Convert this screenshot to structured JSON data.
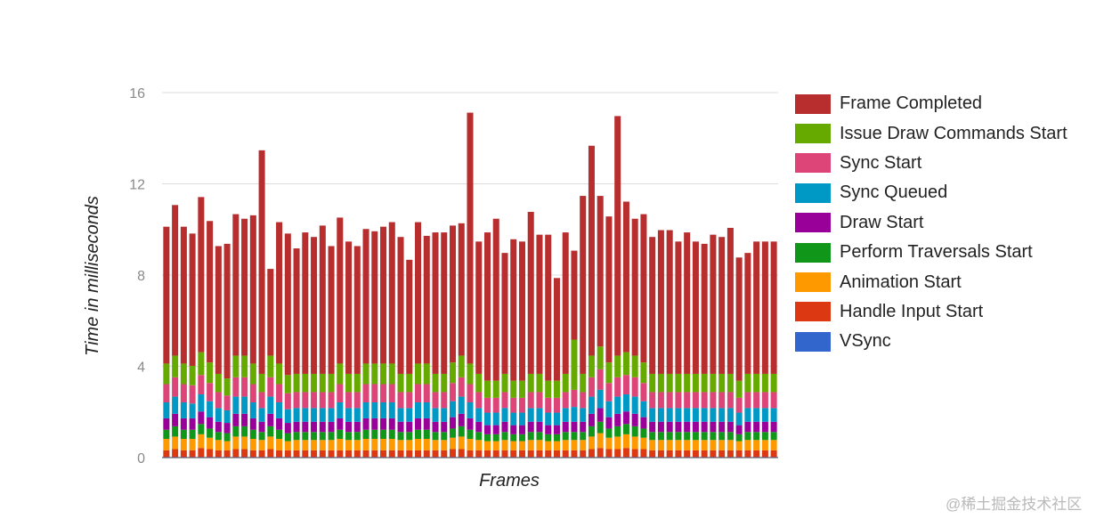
{
  "chart_data": {
    "type": "bar",
    "stacked": true,
    "xlabel": "Frames",
    "ylabel": "Time in milliseconds",
    "ylim": [
      0,
      16
    ],
    "yticks": [
      0,
      4,
      8,
      12,
      16
    ],
    "grid": true,
    "legend_position": "right",
    "frame_count": 71,
    "series": [
      {
        "name": "VSync",
        "color": "#3366cc",
        "values": [
          0.02,
          0.02,
          0.02,
          0.02,
          0.02,
          0.02,
          0.02,
          0.02,
          0.02,
          0.02,
          0.02,
          0.02,
          0.02,
          0.02,
          0.02,
          0.02,
          0.02,
          0.02,
          0.02,
          0.02,
          0.02,
          0.02,
          0.02,
          0.02,
          0.02,
          0.02,
          0.02,
          0.02,
          0.02,
          0.02,
          0.02,
          0.02,
          0.02,
          0.02,
          0.02,
          0.02,
          0.02,
          0.02,
          0.02,
          0.02,
          0.02,
          0.02,
          0.02,
          0.02,
          0.02,
          0.02,
          0.02,
          0.02,
          0.02,
          0.02,
          0.02,
          0.02,
          0.02,
          0.02,
          0.02,
          0.02,
          0.02,
          0.02,
          0.02,
          0.02,
          0.02,
          0.02,
          0.02,
          0.02,
          0.02,
          0.02,
          0.02,
          0.02,
          0.02,
          0.02,
          0.02
        ]
      },
      {
        "name": "Handle Input Start",
        "color": "#dc3912",
        "values": [
          0.3,
          0.35,
          0.3,
          0.3,
          0.4,
          0.35,
          0.3,
          0.3,
          0.35,
          0.35,
          0.3,
          0.3,
          0.35,
          0.3,
          0.3,
          0.3,
          0.3,
          0.3,
          0.3,
          0.3,
          0.3,
          0.3,
          0.3,
          0.3,
          0.3,
          0.3,
          0.3,
          0.3,
          0.3,
          0.3,
          0.3,
          0.3,
          0.3,
          0.35,
          0.35,
          0.3,
          0.3,
          0.3,
          0.3,
          0.3,
          0.3,
          0.3,
          0.3,
          0.3,
          0.3,
          0.3,
          0.3,
          0.3,
          0.3,
          0.35,
          0.4,
          0.35,
          0.35,
          0.4,
          0.35,
          0.35,
          0.3,
          0.3,
          0.3,
          0.3,
          0.3,
          0.3,
          0.3,
          0.3,
          0.3,
          0.3,
          0.3,
          0.3,
          0.3,
          0.3,
          0.3
        ]
      },
      {
        "name": "Animation Start",
        "color": "#ff9900",
        "values": [
          0.5,
          0.55,
          0.5,
          0.5,
          0.6,
          0.5,
          0.45,
          0.4,
          0.55,
          0.55,
          0.5,
          0.45,
          0.55,
          0.5,
          0.4,
          0.45,
          0.45,
          0.45,
          0.45,
          0.45,
          0.5,
          0.45,
          0.45,
          0.5,
          0.5,
          0.5,
          0.5,
          0.45,
          0.45,
          0.5,
          0.5,
          0.45,
          0.45,
          0.5,
          0.55,
          0.5,
          0.45,
          0.4,
          0.4,
          0.45,
          0.4,
          0.4,
          0.45,
          0.45,
          0.4,
          0.4,
          0.45,
          0.45,
          0.45,
          0.55,
          0.65,
          0.5,
          0.55,
          0.6,
          0.55,
          0.5,
          0.45,
          0.45,
          0.45,
          0.45,
          0.45,
          0.45,
          0.45,
          0.45,
          0.45,
          0.45,
          0.4,
          0.45,
          0.45,
          0.45,
          0.45
        ]
      },
      {
        "name": "Perform Traversals Start",
        "color": "#109618",
        "values": [
          0.4,
          0.45,
          0.4,
          0.4,
          0.45,
          0.4,
          0.35,
          0.35,
          0.45,
          0.45,
          0.4,
          0.35,
          0.45,
          0.4,
          0.35,
          0.35,
          0.35,
          0.35,
          0.35,
          0.35,
          0.4,
          0.35,
          0.35,
          0.4,
          0.4,
          0.4,
          0.4,
          0.35,
          0.35,
          0.4,
          0.4,
          0.35,
          0.35,
          0.4,
          0.45,
          0.4,
          0.35,
          0.3,
          0.3,
          0.35,
          0.3,
          0.3,
          0.35,
          0.35,
          0.3,
          0.3,
          0.35,
          0.35,
          0.35,
          0.45,
          0.5,
          0.4,
          0.45,
          0.45,
          0.45,
          0.4,
          0.35,
          0.35,
          0.35,
          0.35,
          0.35,
          0.35,
          0.35,
          0.35,
          0.35,
          0.35,
          0.3,
          0.35,
          0.35,
          0.35,
          0.35
        ]
      },
      {
        "name": "Draw Start",
        "color": "#990099",
        "values": [
          0.5,
          0.55,
          0.5,
          0.5,
          0.55,
          0.5,
          0.45,
          0.45,
          0.55,
          0.55,
          0.5,
          0.45,
          0.55,
          0.5,
          0.45,
          0.45,
          0.45,
          0.45,
          0.45,
          0.45,
          0.5,
          0.45,
          0.45,
          0.5,
          0.5,
          0.5,
          0.5,
          0.45,
          0.45,
          0.5,
          0.5,
          0.45,
          0.45,
          0.5,
          0.55,
          0.5,
          0.45,
          0.4,
          0.4,
          0.45,
          0.4,
          0.4,
          0.45,
          0.45,
          0.4,
          0.4,
          0.45,
          0.45,
          0.45,
          0.55,
          0.6,
          0.5,
          0.55,
          0.55,
          0.55,
          0.5,
          0.45,
          0.45,
          0.45,
          0.45,
          0.45,
          0.45,
          0.45,
          0.45,
          0.45,
          0.45,
          0.4,
          0.45,
          0.45,
          0.45,
          0.45
        ]
      },
      {
        "name": "Sync Queued",
        "color": "#0099c6",
        "values": [
          0.7,
          0.75,
          0.7,
          0.65,
          0.75,
          0.7,
          0.6,
          0.55,
          0.75,
          0.75,
          0.7,
          0.6,
          0.75,
          0.7,
          0.6,
          0.6,
          0.6,
          0.6,
          0.6,
          0.6,
          0.7,
          0.6,
          0.6,
          0.7,
          0.7,
          0.7,
          0.7,
          0.6,
          0.6,
          0.7,
          0.7,
          0.6,
          0.6,
          0.7,
          0.75,
          0.7,
          0.6,
          0.55,
          0.55,
          0.6,
          0.55,
          0.55,
          0.6,
          0.6,
          0.55,
          0.55,
          0.6,
          0.65,
          0.6,
          0.75,
          0.8,
          0.7,
          0.75,
          0.75,
          0.75,
          0.7,
          0.6,
          0.6,
          0.6,
          0.6,
          0.6,
          0.6,
          0.6,
          0.6,
          0.6,
          0.6,
          0.55,
          0.6,
          0.6,
          0.6,
          0.6
        ]
      },
      {
        "name": "Sync Start",
        "color": "#dd4477",
        "values": [
          0.8,
          0.85,
          0.8,
          0.8,
          0.85,
          0.8,
          0.7,
          0.65,
          0.85,
          0.85,
          0.8,
          0.7,
          0.85,
          0.8,
          0.7,
          0.7,
          0.7,
          0.7,
          0.7,
          0.7,
          0.8,
          0.7,
          0.7,
          0.8,
          0.8,
          0.8,
          0.8,
          0.7,
          0.7,
          0.8,
          0.8,
          0.7,
          0.7,
          0.8,
          0.85,
          0.8,
          0.7,
          0.65,
          0.65,
          0.7,
          0.65,
          0.65,
          0.7,
          0.7,
          0.65,
          0.65,
          0.7,
          0.75,
          0.7,
          0.85,
          0.9,
          0.8,
          0.85,
          0.85,
          0.85,
          0.8,
          0.7,
          0.7,
          0.7,
          0.7,
          0.7,
          0.7,
          0.7,
          0.7,
          0.7,
          0.7,
          0.65,
          0.7,
          0.7,
          0.7,
          0.7
        ]
      },
      {
        "name": "Issue Draw Commands Start",
        "color": "#66aa00",
        "values": [
          0.9,
          0.95,
          0.9,
          0.85,
          1.0,
          0.9,
          0.8,
          0.75,
          0.95,
          0.95,
          0.9,
          0.8,
          0.95,
          0.9,
          0.8,
          0.8,
          0.8,
          0.8,
          0.8,
          0.8,
          0.9,
          0.8,
          0.8,
          0.9,
          0.9,
          0.9,
          0.9,
          0.8,
          0.8,
          0.9,
          0.9,
          0.8,
          0.8,
          0.9,
          0.95,
          0.9,
          0.8,
          0.75,
          0.75,
          0.8,
          0.75,
          0.75,
          0.8,
          0.8,
          0.75,
          0.75,
          0.8,
          2.2,
          0.8,
          0.95,
          1.0,
          0.9,
          0.95,
          1.0,
          0.95,
          0.9,
          0.8,
          0.8,
          0.8,
          0.8,
          0.8,
          0.8,
          0.8,
          0.8,
          0.8,
          0.8,
          0.75,
          0.8,
          0.8,
          0.8,
          0.8
        ]
      },
      {
        "name": "Frame Completed",
        "color": "#b82e2e",
        "values": [
          6.0,
          6.6,
          6.0,
          5.8,
          6.8,
          6.2,
          5.6,
          5.9,
          6.2,
          6.0,
          6.5,
          9.8,
          3.8,
          6.2,
          6.2,
          5.5,
          6.2,
          6.0,
          6.5,
          5.6,
          6.4,
          5.8,
          5.6,
          5.9,
          5.8,
          6.0,
          6.2,
          6.0,
          5.0,
          6.2,
          5.6,
          6.2,
          6.2,
          6.0,
          5.8,
          11.0,
          5.8,
          6.5,
          7.1,
          5.3,
          6.2,
          6.1,
          7.1,
          6.1,
          6.4,
          4.5,
          6.2,
          3.9,
          7.8,
          9.2,
          6.6,
          6.4,
          10.5,
          6.6,
          6.0,
          6.5,
          6.0,
          6.3,
          6.3,
          5.8,
          6.2,
          5.8,
          5.7,
          6.1,
          6.0,
          6.4,
          5.4,
          5.3,
          5.8,
          5.8,
          5.8
        ]
      }
    ]
  },
  "watermark": "@稀土掘金技术社区"
}
